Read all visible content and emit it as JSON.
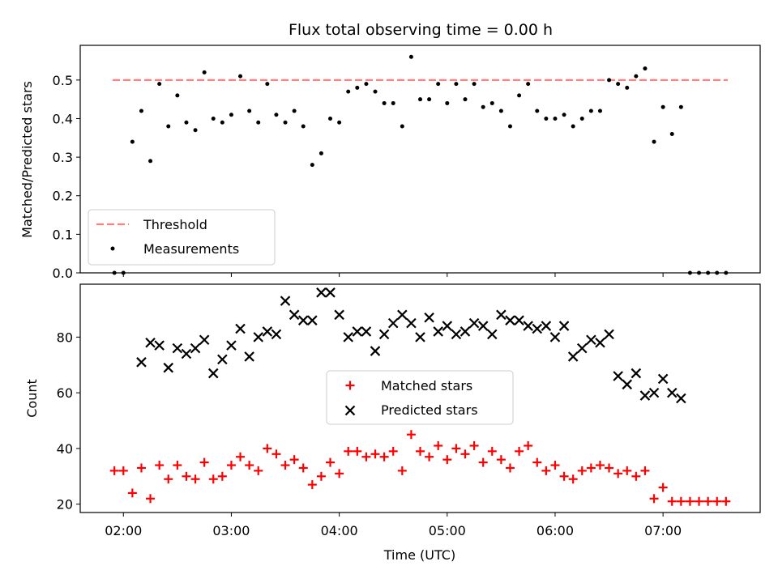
{
  "chart_data": [
    {
      "type": "scatter",
      "title": "Flux total observing time = 0.00 h",
      "xlabel": "",
      "ylabel": "Matched/Predicted stars",
      "ylim": [
        0,
        0.59
      ],
      "yticks": [
        "0.0",
        "0.1",
        "0.2",
        "0.3",
        "0.4",
        "0.5"
      ],
      "legend": {
        "placement": "lower-left",
        "entries": [
          "Threshold",
          "Measurements"
        ]
      },
      "colors": {
        "threshold": "#ff7f7f",
        "measurements": "#000000"
      },
      "threshold": {
        "value": 0.5,
        "x_range": [
          "01:54",
          "07:36"
        ]
      },
      "series": [
        {
          "name": "Measurements",
          "x": [
            "01:55",
            "02:00",
            "02:05",
            "02:10",
            "02:15",
            "02:20",
            "02:25",
            "02:30",
            "02:35",
            "02:40",
            "02:45",
            "02:50",
            "02:55",
            "03:00",
            "03:05",
            "03:10",
            "03:15",
            "03:20",
            "03:25",
            "03:30",
            "03:35",
            "03:40",
            "03:45",
            "03:50",
            "03:55",
            "04:00",
            "04:05",
            "04:10",
            "04:15",
            "04:20",
            "04:25",
            "04:30",
            "04:35",
            "04:40",
            "04:45",
            "04:50",
            "04:55",
            "05:00",
            "05:05",
            "05:10",
            "05:15",
            "05:20",
            "05:25",
            "05:30",
            "05:35",
            "05:40",
            "05:45",
            "05:50",
            "05:55",
            "06:00",
            "06:05",
            "06:10",
            "06:15",
            "06:20",
            "06:25",
            "06:30",
            "06:35",
            "06:40",
            "06:45",
            "06:50",
            "06:55",
            "07:00",
            "07:05",
            "07:10",
            "07:15",
            "07:20",
            "07:25",
            "07:30",
            "07:35"
          ],
          "y": [
            0.0,
            0.0,
            0.34,
            0.42,
            0.29,
            0.49,
            0.38,
            0.46,
            0.39,
            0.37,
            0.52,
            0.4,
            0.39,
            0.41,
            0.51,
            0.42,
            0.39,
            0.49,
            0.41,
            0.39,
            0.42,
            0.38,
            0.28,
            0.31,
            0.4,
            0.39,
            0.47,
            0.48,
            0.49,
            0.47,
            0.44,
            0.44,
            0.38,
            0.56,
            0.45,
            0.45,
            0.49,
            0.44,
            0.49,
            0.45,
            0.49,
            0.43,
            0.44,
            0.42,
            0.38,
            0.46,
            0.49,
            0.42,
            0.4,
            0.4,
            0.41,
            0.38,
            0.4,
            0.42,
            0.42,
            0.5,
            0.49,
            0.48,
            0.51,
            0.53,
            0.34,
            0.43,
            0.36,
            0.43,
            0.0,
            0.0,
            0.0,
            0.0,
            0.0
          ]
        }
      ]
    },
    {
      "type": "scatter",
      "xlabel": "Time (UTC)",
      "ylabel": "Count",
      "ylim": [
        17,
        99
      ],
      "yticks": [
        "20",
        "40",
        "60",
        "80"
      ],
      "xticks": [
        "02:00",
        "03:00",
        "04:00",
        "05:00",
        "06:00",
        "07:00"
      ],
      "legend": {
        "placement": "center",
        "entries": [
          "Matched stars",
          "Predicted stars"
        ]
      },
      "colors": {
        "matched": "#ff0000",
        "predicted": "#000000"
      },
      "series": [
        {
          "name": "Matched stars",
          "x": [
            "01:55",
            "02:00",
            "02:05",
            "02:10",
            "02:15",
            "02:20",
            "02:25",
            "02:30",
            "02:35",
            "02:40",
            "02:45",
            "02:50",
            "02:55",
            "03:00",
            "03:05",
            "03:10",
            "03:15",
            "03:20",
            "03:25",
            "03:30",
            "03:35",
            "03:40",
            "03:45",
            "03:50",
            "03:55",
            "04:00",
            "04:05",
            "04:10",
            "04:15",
            "04:20",
            "04:25",
            "04:30",
            "04:35",
            "04:40",
            "04:45",
            "04:50",
            "04:55",
            "05:00",
            "05:05",
            "05:10",
            "05:15",
            "05:20",
            "05:25",
            "05:30",
            "05:35",
            "05:40",
            "05:45",
            "05:50",
            "05:55",
            "06:00",
            "06:05",
            "06:10",
            "06:15",
            "06:20",
            "06:25",
            "06:30",
            "06:35",
            "06:40",
            "06:45",
            "06:50",
            "06:55",
            "07:00",
            "07:05",
            "07:10",
            "07:15",
            "07:20",
            "07:25",
            "07:30",
            "07:35"
          ],
          "y": [
            32,
            32,
            24,
            33,
            22,
            34,
            29,
            34,
            30,
            29,
            35,
            29,
            30,
            34,
            37,
            34,
            32,
            40,
            38,
            34,
            36,
            33,
            27,
            30,
            35,
            31,
            39,
            39,
            37,
            38,
            37,
            39,
            32,
            45,
            39,
            37,
            41,
            36,
            40,
            38,
            41,
            35,
            39,
            36,
            33,
            39,
            41,
            35,
            32,
            34,
            30,
            29,
            32,
            33,
            34,
            33,
            31,
            32,
            30,
            32,
            22,
            26,
            21,
            21,
            21,
            21,
            21,
            21,
            21
          ]
        },
        {
          "name": "Predicted stars",
          "x": [
            "02:10",
            "02:15",
            "02:20",
            "02:25",
            "02:30",
            "02:35",
            "02:40",
            "02:45",
            "02:50",
            "02:55",
            "03:00",
            "03:05",
            "03:10",
            "03:15",
            "03:20",
            "03:25",
            "03:30",
            "03:35",
            "03:40",
            "03:45",
            "03:50",
            "03:55",
            "04:00",
            "04:05",
            "04:10",
            "04:15",
            "04:20",
            "04:25",
            "04:30",
            "04:35",
            "04:40",
            "04:45",
            "04:50",
            "04:55",
            "05:00",
            "05:05",
            "05:10",
            "05:15",
            "05:20",
            "05:25",
            "05:30",
            "05:35",
            "05:40",
            "05:45",
            "05:50",
            "05:55",
            "06:00",
            "06:05",
            "06:10",
            "06:15",
            "06:20",
            "06:25",
            "06:30",
            "06:35",
            "06:40",
            "06:45",
            "06:50",
            "06:55",
            "07:00",
            "07:05",
            "07:10"
          ],
          "y": [
            71,
            78,
            77,
            69,
            76,
            74,
            76,
            79,
            67,
            72,
            77,
            83,
            73,
            80,
            82,
            81,
            93,
            88,
            86,
            86,
            96,
            96,
            88,
            80,
            82,
            82,
            75,
            81,
            85,
            88,
            85,
            80,
            87,
            82,
            84,
            81,
            82,
            85,
            84,
            81,
            88,
            86,
            86,
            84,
            83,
            84,
            80,
            84,
            73,
            76,
            79,
            78,
            81,
            66,
            63,
            67,
            59,
            60,
            65,
            60,
            58
          ]
        }
      ]
    }
  ]
}
